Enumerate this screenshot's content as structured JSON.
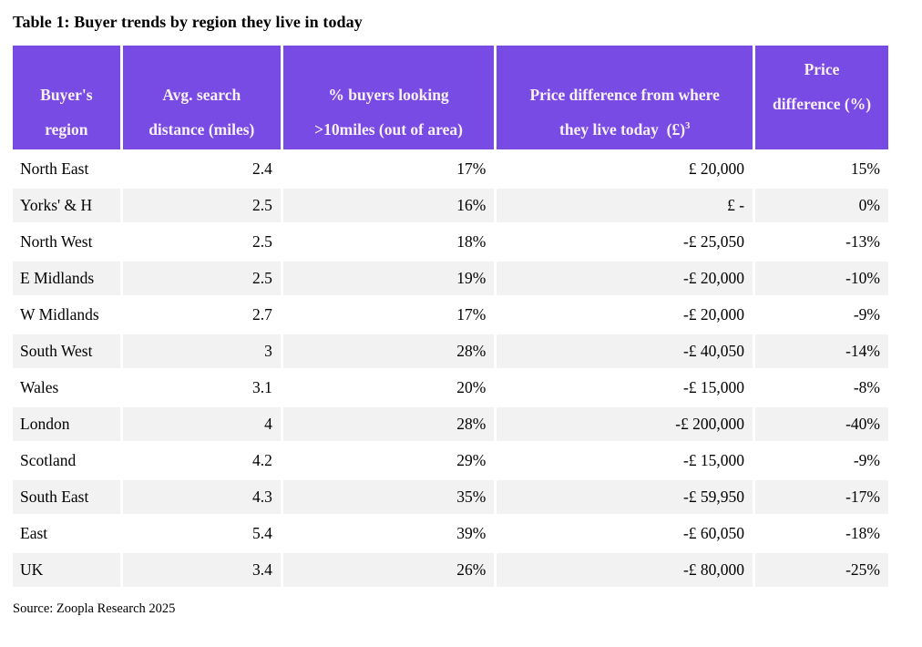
{
  "title": "Table 1: Buyer trends by region they live in today",
  "source": "Source: Zoopla Research 2025",
  "colors": {
    "header_bg": "#784ce4",
    "header_text": "#faf1f8",
    "stripe_bg": "#f2f2f2",
    "body_text": "#000000",
    "page_bg": "#ffffff"
  },
  "table": {
    "headers": [
      {
        "id": "buyers-region",
        "lines": [
          "Buyer's",
          "region"
        ]
      },
      {
        "id": "avg-search-distance",
        "lines": [
          "Avg. search",
          "distance (miles)"
        ]
      },
      {
        "id": "pct-buyers-looking",
        "lines": [
          "% buyers looking",
          ">10miles (out of area)"
        ]
      },
      {
        "id": "price-difference-gbp",
        "lines": [
          "Price difference from where",
          "they live today  (£)"
        ],
        "sup": "3"
      },
      {
        "id": "price-difference-pct",
        "lines": [
          "Price",
          "difference (%)"
        ]
      }
    ],
    "rows": [
      [
        "North East",
        "2.4",
        "17%",
        "£ 20,000",
        "15%"
      ],
      [
        "Yorks' & H",
        "2.5",
        "16%",
        "£ -",
        "0%"
      ],
      [
        "North West",
        "2.5",
        "18%",
        "-£ 25,050",
        "-13%"
      ],
      [
        "E Midlands",
        "2.5",
        "19%",
        "-£ 20,000",
        "-10%"
      ],
      [
        "W Midlands",
        "2.7",
        "17%",
        "-£ 20,000",
        "-9%"
      ],
      [
        "South West",
        "3",
        "28%",
        "-£ 40,050",
        "-14%"
      ],
      [
        "Wales",
        "3.1",
        "20%",
        "-£ 15,000",
        "-8%"
      ],
      [
        "London",
        "4",
        "28%",
        "-£ 200,000",
        "-40%"
      ],
      [
        "Scotland",
        "4.2",
        "29%",
        "-£ 15,000",
        "-9%"
      ],
      [
        "South East",
        "4.3",
        "35%",
        "-£ 59,950",
        "-17%"
      ],
      [
        "East",
        "5.4",
        "39%",
        "-£ 60,050",
        "-18%"
      ],
      [
        "UK",
        "3.4",
        "26%",
        "-£ 80,000",
        "-25%"
      ]
    ]
  },
  "chart_data": {
    "type": "table",
    "title": "Table 1: Buyer trends by region they live in today",
    "source": "Source: Zoopla Research 2025",
    "columns": [
      "Buyer's region",
      "Avg. search distance (miles)",
      "% buyers looking >10miles (out of area)",
      "Price difference from where they live today (£)³",
      "Price difference (%)"
    ],
    "regions": [
      "North East",
      "Yorks' & H",
      "North West",
      "E Midlands",
      "W Midlands",
      "South West",
      "Wales",
      "London",
      "Scotland",
      "South East",
      "East",
      "UK"
    ],
    "avg_search_distance_miles": [
      2.4,
      2.5,
      2.5,
      2.5,
      2.7,
      3,
      3.1,
      4,
      4.2,
      4.3,
      5.4,
      3.4
    ],
    "pct_buyers_looking_over_10miles": [
      17,
      16,
      18,
      19,
      17,
      28,
      20,
      28,
      29,
      35,
      39,
      26
    ],
    "price_difference_gbp": [
      20000,
      0,
      -25050,
      -20000,
      -20000,
      -40050,
      -15000,
      -200000,
      -15000,
      -59950,
      -60050,
      -80000
    ],
    "price_difference_pct": [
      15,
      0,
      -13,
      -10,
      -9,
      -14,
      -8,
      -40,
      -9,
      -17,
      -18,
      -25
    ]
  }
}
